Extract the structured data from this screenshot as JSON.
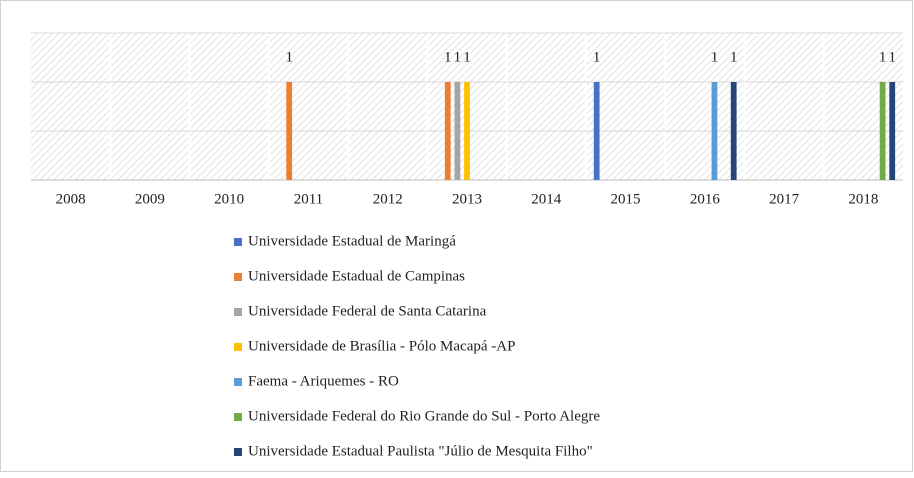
{
  "chart_data": {
    "type": "bar",
    "categories": [
      "2008",
      "2009",
      "2010",
      "2011",
      "2012",
      "2013",
      "2014",
      "2015",
      "2016",
      "2017",
      "2018"
    ],
    "series": [
      {
        "name": "Universidade Estadual de Maringá",
        "color": "#4472c4",
        "values": [
          null,
          null,
          null,
          null,
          null,
          null,
          null,
          1,
          null,
          null,
          null
        ]
      },
      {
        "name": "Universidade Estadual de Campinas",
        "color": "#ed7d31",
        "values": [
          null,
          null,
          null,
          1,
          null,
          1,
          null,
          null,
          null,
          null,
          null
        ]
      },
      {
        "name": "Universidade Federal de Santa Catarina",
        "color": "#a5a5a5",
        "values": [
          null,
          null,
          null,
          null,
          null,
          1,
          null,
          null,
          null,
          null,
          null
        ]
      },
      {
        "name": "Universidade de Brasília - Pólo Macapá -AP",
        "color": "#ffc000",
        "values": [
          null,
          null,
          null,
          null,
          null,
          1,
          null,
          null,
          null,
          null,
          null
        ]
      },
      {
        "name": "Faema - Ariquemes - RO",
        "color": "#5b9bd5",
        "values": [
          null,
          null,
          null,
          null,
          null,
          null,
          null,
          null,
          1,
          null,
          null
        ]
      },
      {
        "name": "Universidade Federal do Rio Grande do Sul - Porto Alegre",
        "color": "#70ad47",
        "values": [
          null,
          null,
          null,
          null,
          null,
          null,
          null,
          null,
          null,
          null,
          1
        ]
      },
      {
        "name": "Universidade Estadual Paulista \"Júlio de Mesquita Filho\"",
        "color": "#264478",
        "values": [
          null,
          null,
          null,
          null,
          null,
          null,
          null,
          null,
          1,
          null,
          1
        ]
      }
    ],
    "ylim": [
      0,
      1.5
    ],
    "yticks": [
      0,
      0.5,
      1,
      1.5
    ],
    "grid": true,
    "legend": "bottom"
  }
}
